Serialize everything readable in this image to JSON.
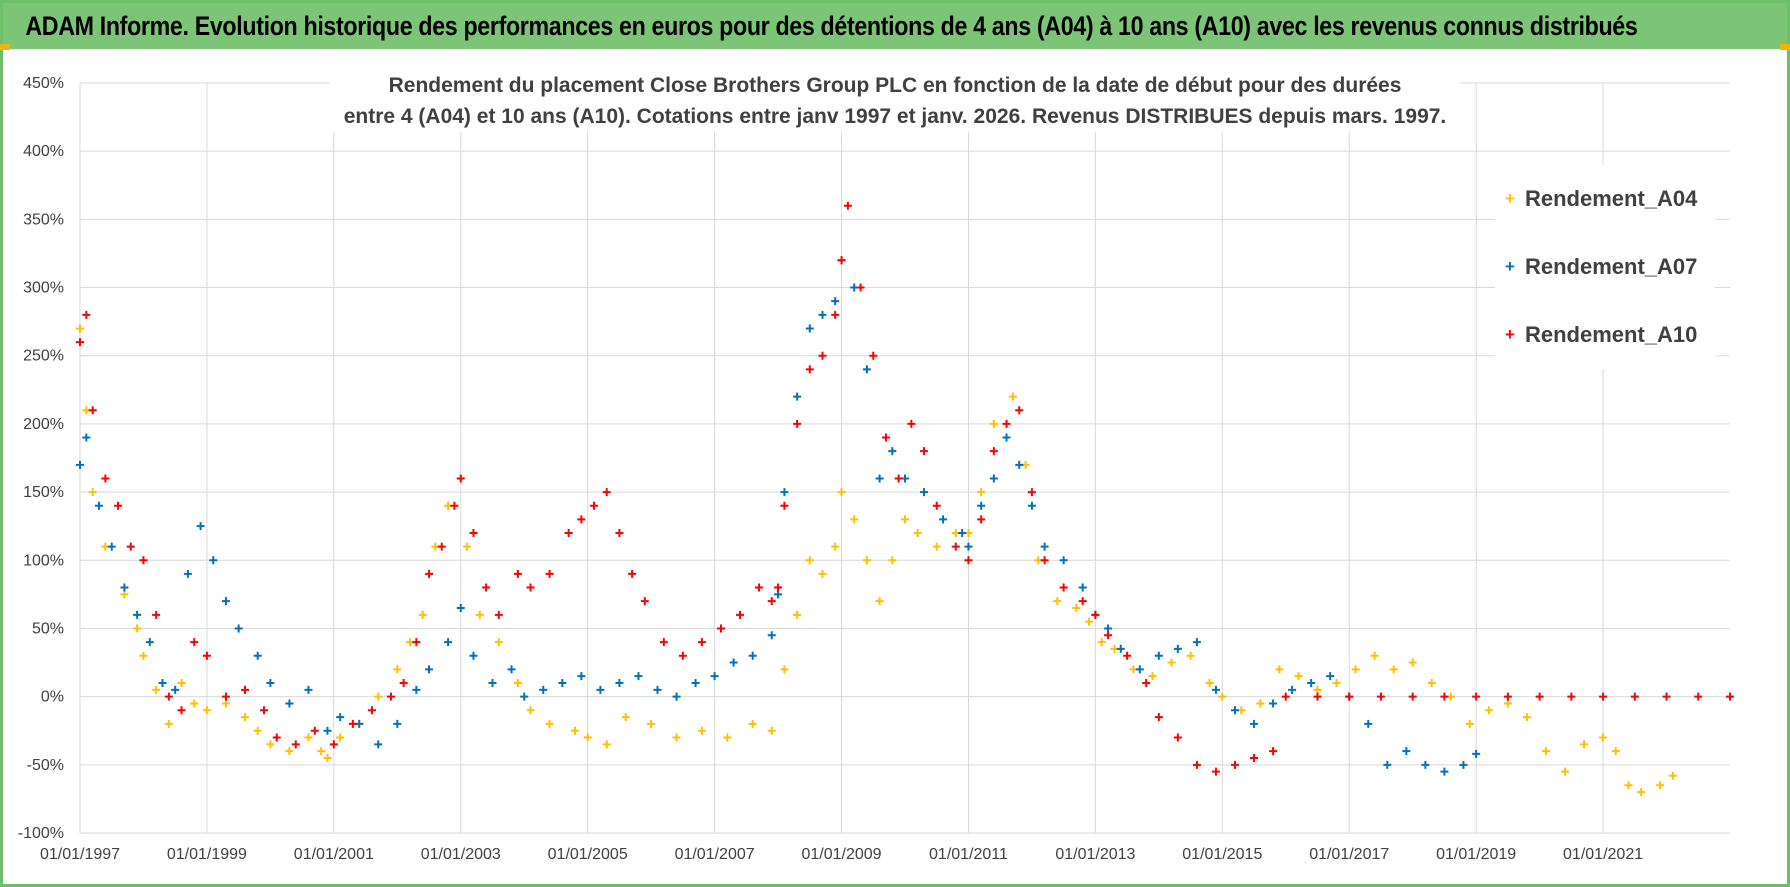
{
  "header": {
    "title": "ADAM Informe. Evolution historique des performances en euros pour des détentions de 4 ans (A04) à 10 ans (A10) avec les revenus connus distribués"
  },
  "colors": {
    "banner": "#7cc576",
    "A04": "#ffc000",
    "A07": "#0070c0",
    "A10": "#ff0000",
    "grid": "#d9d9d9"
  },
  "chart_data": {
    "type": "scatter",
    "title_line1": "Rendement du placement Close Brothers Group PLC en fonction de la date de début pour des durées",
    "title_line2": "entre 4 (A04) et 10 ans (A10).  Cotations entre janv 1997 et janv. 2026. Revenus DISTRIBUES depuis mars. 1997.",
    "xlabel": "",
    "ylabel": "",
    "xlim": [
      1997.0,
      2023.0
    ],
    "ylim": [
      -100,
      450
    ],
    "y_ticks": [
      450,
      400,
      350,
      300,
      250,
      200,
      150,
      100,
      50,
      0,
      -50,
      -100
    ],
    "y_tick_labels": [
      "450%",
      "400%",
      "350%",
      "300%",
      "250%",
      "200%",
      "150%",
      "100%",
      "50%",
      "0%",
      "-50%",
      "-100%"
    ],
    "x_ticks": [
      1997,
      1999,
      2001,
      2003,
      2005,
      2007,
      2009,
      2011,
      2013,
      2015,
      2017,
      2019,
      2021
    ],
    "x_tick_labels": [
      "01/01/1997",
      "01/01/1999",
      "01/01/2001",
      "01/01/2003",
      "01/01/2005",
      "01/01/2007",
      "01/01/2009",
      "01/01/2011",
      "01/01/2013",
      "01/01/2015",
      "01/01/2017",
      "01/01/2019",
      "01/01/2021"
    ],
    "legend_position": "right",
    "series": [
      {
        "name": "Rendement_A04",
        "x": [
          1997.0,
          1997.1,
          1997.2,
          1997.4,
          1997.7,
          1997.9,
          1998.0,
          1998.2,
          1998.4,
          1998.6,
          1998.8,
          1999.0,
          1999.3,
          1999.6,
          1999.8,
          2000.0,
          2000.3,
          2000.6,
          2000.8,
          2000.9,
          2001.1,
          2001.4,
          2001.7,
          2002.0,
          2002.2,
          2002.4,
          2002.6,
          2002.8,
          2003.0,
          2003.1,
          2003.3,
          2003.6,
          2003.9,
          2004.1,
          2004.4,
          2004.8,
          2005.0,
          2005.3,
          2005.6,
          2006.0,
          2006.4,
          2006.8,
          2007.2,
          2007.6,
          2007.9,
          2008.1,
          2008.3,
          2008.5,
          2008.7,
          2008.9,
          2009.0,
          2009.2,
          2009.4,
          2009.6,
          2009.8,
          2010.0,
          2010.2,
          2010.5,
          2010.8,
          2011.0,
          2011.2,
          2011.4,
          2011.7,
          2011.9,
          2012.1,
          2012.4,
          2012.7,
          2012.9,
          2013.1,
          2013.3,
          2013.6,
          2013.9,
          2014.2,
          2014.5,
          2014.8,
          2015.0,
          2015.3,
          2015.6,
          2015.9,
          2016.2,
          2016.5,
          2016.8,
          2017.1,
          2017.4,
          2017.7,
          2018.0,
          2018.3,
          2018.6,
          2018.9,
          2019.2,
          2019.5,
          2019.8,
          2020.1,
          2020.4,
          2020.7,
          2021.0,
          2021.2,
          2021.4,
          2021.6,
          2021.9,
          2022.1
        ],
        "y": [
          270,
          210,
          150,
          110,
          75,
          50,
          30,
          5,
          -20,
          10,
          -5,
          -10,
          -5,
          -15,
          -25,
          -35,
          -40,
          -30,
          -40,
          -45,
          -30,
          -20,
          0,
          20,
          40,
          60,
          110,
          140,
          160,
          110,
          60,
          40,
          10,
          -10,
          -20,
          -25,
          -30,
          -35,
          -15,
          -20,
          -30,
          -25,
          -30,
          -20,
          -25,
          20,
          60,
          100,
          90,
          110,
          150,
          130,
          100,
          70,
          100,
          130,
          120,
          110,
          120,
          120,
          150,
          200,
          220,
          170,
          100,
          70,
          65,
          55,
          40,
          35,
          20,
          15,
          25,
          30,
          10,
          0,
          -10,
          -5,
          20,
          15,
          5,
          10,
          20,
          30,
          20,
          25,
          10,
          0,
          -20,
          -10,
          -5,
          -15,
          -40,
          -55,
          -35,
          -30,
          -40,
          -65,
          -70,
          -65,
          -58
        ]
      },
      {
        "name": "Rendement_A07",
        "x": [
          1997.0,
          1997.1,
          1997.3,
          1997.5,
          1997.7,
          1997.9,
          1998.1,
          1998.3,
          1998.5,
          1998.7,
          1998.9,
          1999.1,
          1999.3,
          1999.5,
          1999.8,
          2000.0,
          2000.3,
          2000.6,
          2000.9,
          2001.1,
          2001.4,
          2001.7,
          2002.0,
          2002.3,
          2002.5,
          2002.8,
          2003.0,
          2003.2,
          2003.5,
          2003.8,
          2004.0,
          2004.3,
          2004.6,
          2004.9,
          2005.2,
          2005.5,
          2005.8,
          2006.1,
          2006.4,
          2006.7,
          2007.0,
          2007.3,
          2007.6,
          2007.9,
          2008.0,
          2008.1,
          2008.3,
          2008.5,
          2008.7,
          2008.9,
          2009.0,
          2009.2,
          2009.4,
          2009.6,
          2009.8,
          2010.0,
          2010.3,
          2010.6,
          2010.9,
          2011.0,
          2011.2,
          2011.4,
          2011.6,
          2011.8,
          2012.0,
          2012.2,
          2012.5,
          2012.8,
          2013.0,
          2013.2,
          2013.4,
          2013.7,
          2014.0,
          2014.3,
          2014.6,
          2014.9,
          2015.2,
          2015.5,
          2015.8,
          2016.1,
          2016.4,
          2016.7,
          2017.0,
          2017.3,
          2017.6,
          2017.9,
          2018.2,
          2018.5,
          2018.8,
          2019.0
        ],
        "y": [
          170,
          190,
          140,
          110,
          80,
          60,
          40,
          10,
          5,
          90,
          125,
          100,
          70,
          50,
          30,
          10,
          -5,
          5,
          -25,
          -15,
          -20,
          -35,
          -20,
          5,
          20,
          40,
          65,
          30,
          10,
          20,
          0,
          5,
          10,
          15,
          5,
          10,
          15,
          5,
          0,
          10,
          15,
          25,
          30,
          45,
          75,
          150,
          220,
          270,
          280,
          290,
          320,
          300,
          240,
          160,
          180,
          160,
          150,
          130,
          120,
          110,
          140,
          160,
          190,
          170,
          140,
          110,
          100,
          80,
          60,
          50,
          35,
          20,
          30,
          35,
          40,
          5,
          -10,
          -20,
          -5,
          5,
          10,
          15,
          0,
          -20,
          -50,
          -40,
          -50,
          -55,
          -50,
          -42
        ]
      },
      {
        "name": "Rendement_A10",
        "x": [
          1997.0,
          1997.1,
          1997.2,
          1997.4,
          1997.6,
          1997.8,
          1998.0,
          1998.2,
          1998.4,
          1998.6,
          1998.8,
          1999.0,
          1999.3,
          1999.6,
          1999.9,
          2000.1,
          2000.4,
          2000.7,
          2001.0,
          2001.3,
          2001.6,
          2001.9,
          2002.1,
          2002.3,
          2002.5,
          2002.7,
          2002.9,
          2003.0,
          2003.2,
          2003.4,
          2003.6,
          2003.9,
          2004.1,
          2004.4,
          2004.7,
          2004.9,
          2005.1,
          2005.3,
          2005.5,
          2005.7,
          2005.9,
          2006.2,
          2006.5,
          2006.8,
          2007.1,
          2007.4,
          2007.7,
          2007.9,
          2008.0,
          2008.1,
          2008.3,
          2008.5,
          2008.7,
          2008.9,
          2009.0,
          2009.1,
          2009.3,
          2009.5,
          2009.7,
          2009.9,
          2010.1,
          2010.3,
          2010.5,
          2010.8,
          2011.0,
          2011.2,
          2011.4,
          2011.6,
          2011.8,
          2012.0,
          2012.2,
          2012.5,
          2012.8,
          2013.0,
          2013.2,
          2013.5,
          2013.8,
          2014.0,
          2014.3,
          2014.6,
          2014.9,
          2015.2,
          2015.5,
          2015.8,
          2016.0,
          2016.5,
          2017.0,
          2017.5,
          2018.0,
          2018.5,
          2019.0,
          2019.5,
          2020.0,
          2020.5,
          2021.0,
          2021.5,
          2022.0,
          2022.5,
          2023.0
        ],
        "y": [
          260,
          280,
          210,
          160,
          140,
          110,
          100,
          60,
          0,
          -10,
          40,
          30,
          0,
          5,
          -10,
          -30,
          -35,
          -25,
          -35,
          -20,
          -10,
          0,
          10,
          40,
          90,
          110,
          140,
          160,
          120,
          80,
          60,
          90,
          80,
          90,
          120,
          130,
          140,
          150,
          120,
          90,
          70,
          40,
          30,
          40,
          50,
          60,
          80,
          70,
          80,
          140,
          200,
          240,
          250,
          280,
          320,
          360,
          300,
          250,
          190,
          160,
          200,
          180,
          140,
          110,
          100,
          130,
          180,
          200,
          210,
          150,
          100,
          80,
          70,
          60,
          45,
          30,
          10,
          -15,
          -30,
          -50,
          -55,
          -50,
          -45,
          -40,
          0,
          0,
          0,
          0,
          0,
          0,
          0,
          0,
          0,
          0,
          0,
          0,
          0,
          0,
          0
        ]
      }
    ]
  }
}
